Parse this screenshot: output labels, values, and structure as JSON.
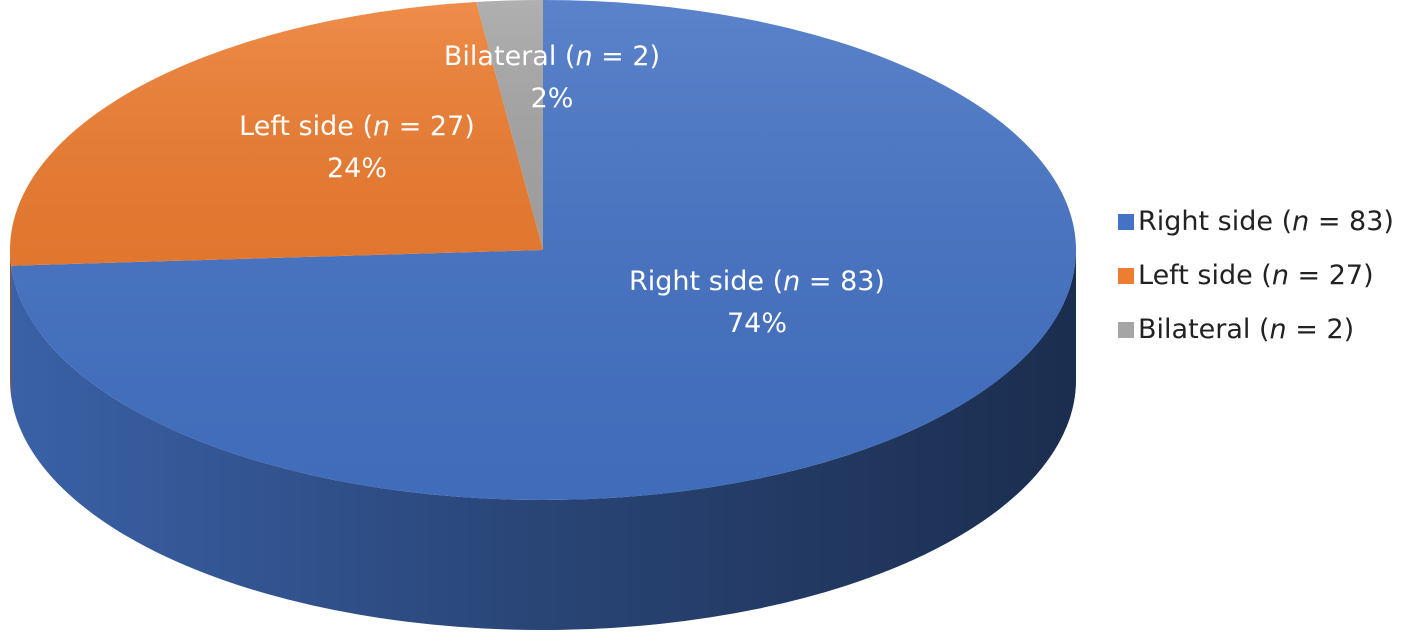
{
  "chart_data": {
    "type": "pie3d",
    "categories": [
      "Right side (n = 83)",
      "Left side (n = 27)",
      "Bilateral (n = 2)"
    ],
    "values": [
      74,
      24,
      2
    ],
    "value_labels": [
      "74%",
      "24%",
      "2%"
    ],
    "colors": [
      "#4472c4",
      "#ed7d31",
      "#a5a5a5"
    ],
    "legend": "right"
  }
}
